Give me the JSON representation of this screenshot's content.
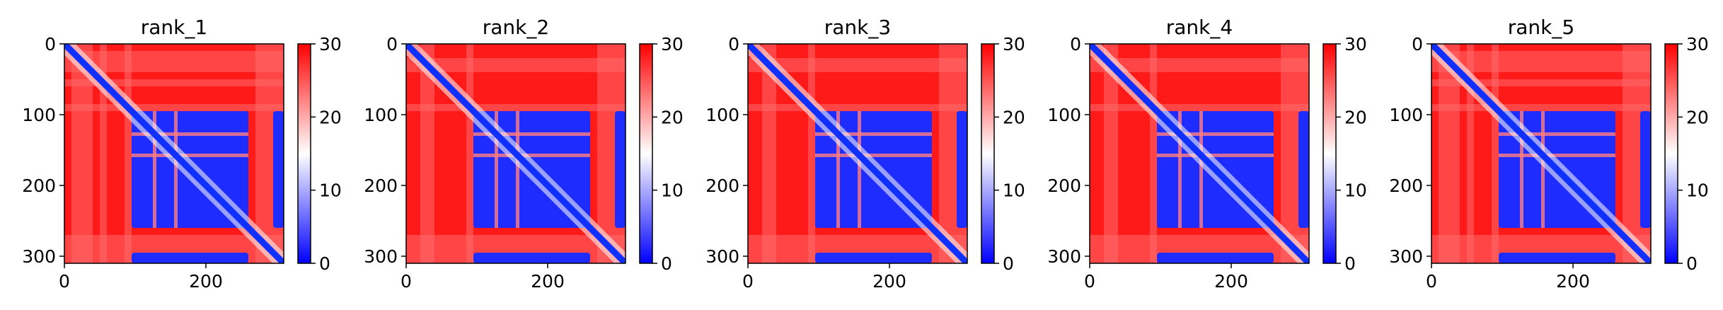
{
  "chart_data": [
    {
      "type": "heatmap",
      "title": "rank_1",
      "x_ticks": [
        0,
        200
      ],
      "y_ticks": [
        0,
        100,
        200,
        300
      ],
      "xlim": [
        0,
        310
      ],
      "ylim": [
        310,
        0
      ],
      "colorbar": {
        "ticks": [
          0,
          10,
          20,
          30
        ],
        "range": [
          0,
          30
        ],
        "colormap": [
          "#0000ff",
          "#ffffff",
          "#ff0000"
        ]
      },
      "blocks": [
        [
          95,
          125,
          95,
          260
        ],
        [
          130,
          155,
          95,
          260
        ],
        [
          160,
          260,
          95,
          260
        ],
        [
          95,
          260,
          295,
          310
        ]
      ],
      "light_bands": [
        [
          10,
          40
        ],
        [
          50,
          60
        ],
        [
          85,
          95
        ],
        [
          270,
          310
        ]
      ]
    },
    {
      "type": "heatmap",
      "title": "rank_2",
      "x_ticks": [
        0,
        200
      ],
      "y_ticks": [
        0,
        100,
        200,
        300
      ],
      "xlim": [
        0,
        310
      ],
      "ylim": [
        310,
        0
      ],
      "colorbar": {
        "ticks": [
          0,
          10,
          20,
          30
        ],
        "range": [
          0,
          30
        ],
        "colormap": [
          "#0000ff",
          "#ffffff",
          "#ff0000"
        ]
      },
      "blocks": [
        [
          95,
          125,
          95,
          260
        ],
        [
          130,
          155,
          95,
          260
        ],
        [
          160,
          260,
          95,
          260
        ],
        [
          95,
          260,
          295,
          310
        ]
      ],
      "light_bands": [
        [
          20,
          40
        ],
        [
          85,
          95
        ],
        [
          270,
          310
        ]
      ]
    },
    {
      "type": "heatmap",
      "title": "rank_3",
      "x_ticks": [
        0,
        200
      ],
      "y_ticks": [
        0,
        100,
        200,
        300
      ],
      "xlim": [
        0,
        310
      ],
      "ylim": [
        310,
        0
      ],
      "colorbar": {
        "ticks": [
          0,
          10,
          20,
          30
        ],
        "range": [
          0,
          30
        ],
        "colormap": [
          "#0000ff",
          "#ffffff",
          "#ff0000"
        ]
      },
      "blocks": [
        [
          95,
          125,
          95,
          260
        ],
        [
          130,
          155,
          95,
          260
        ],
        [
          160,
          260,
          95,
          260
        ],
        [
          95,
          260,
          295,
          310
        ]
      ],
      "light_bands": [
        [
          20,
          40
        ],
        [
          85,
          95
        ],
        [
          270,
          310
        ]
      ]
    },
    {
      "type": "heatmap",
      "title": "rank_4",
      "x_ticks": [
        0,
        200
      ],
      "y_ticks": [
        0,
        100,
        200,
        300
      ],
      "xlim": [
        0,
        310
      ],
      "ylim": [
        310,
        0
      ],
      "colorbar": {
        "ticks": [
          0,
          10,
          20,
          30
        ],
        "range": [
          0,
          30
        ],
        "colormap": [
          "#0000ff",
          "#ffffff",
          "#ff0000"
        ]
      },
      "blocks": [
        [
          95,
          125,
          95,
          260
        ],
        [
          130,
          155,
          95,
          260
        ],
        [
          160,
          260,
          95,
          260
        ],
        [
          95,
          260,
          295,
          310
        ]
      ],
      "light_bands": [
        [
          20,
          40
        ],
        [
          85,
          95
        ],
        [
          270,
          310
        ]
      ]
    },
    {
      "type": "heatmap",
      "title": "rank_5",
      "x_ticks": [
        0,
        200
      ],
      "y_ticks": [
        0,
        100,
        200,
        300
      ],
      "xlim": [
        0,
        310
      ],
      "ylim": [
        310,
        0
      ],
      "colorbar": {
        "ticks": [
          0,
          10,
          20,
          30
        ],
        "range": [
          0,
          30
        ],
        "colormap": [
          "#0000ff",
          "#ffffff",
          "#ff0000"
        ]
      },
      "blocks": [
        [
          95,
          125,
          95,
          260
        ],
        [
          130,
          155,
          95,
          260
        ],
        [
          160,
          260,
          95,
          260
        ],
        [
          95,
          260,
          295,
          310
        ]
      ],
      "light_bands": [
        [
          10,
          40
        ],
        [
          50,
          60
        ],
        [
          85,
          95
        ],
        [
          270,
          310
        ]
      ]
    }
  ]
}
